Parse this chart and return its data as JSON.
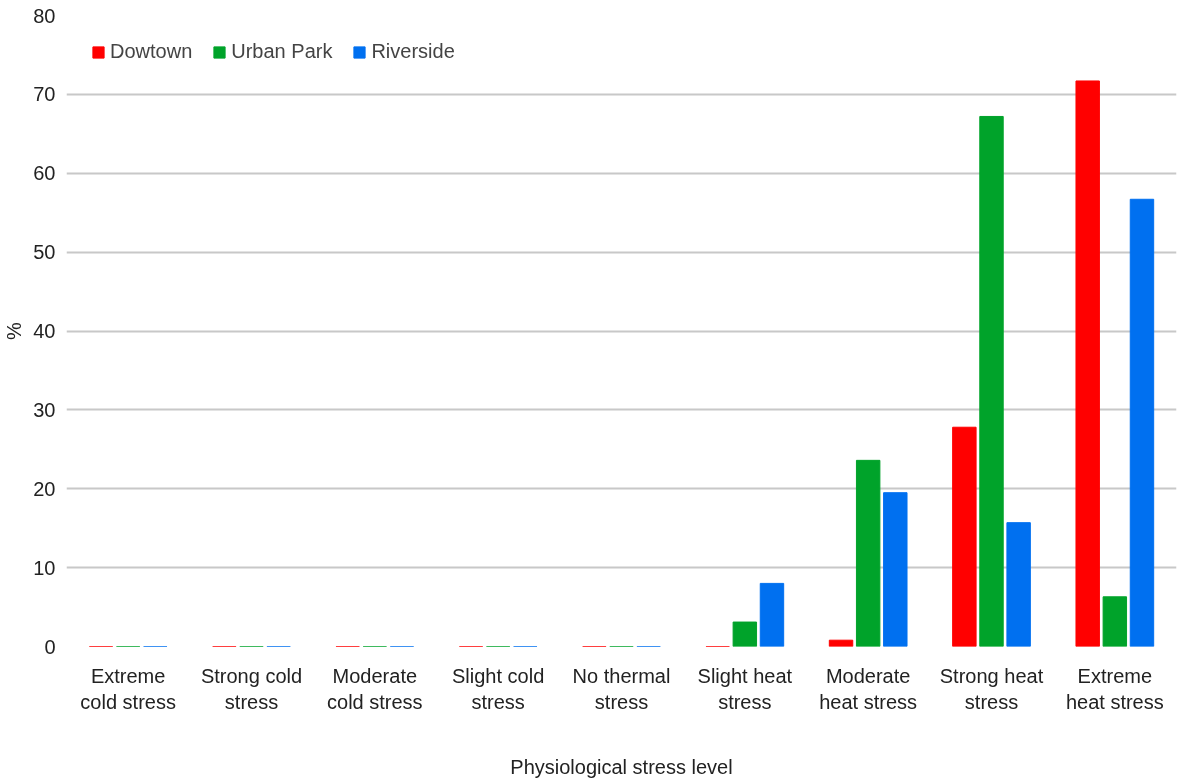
{
  "chart_data": {
    "type": "bar",
    "xlabel": "Physiological stress level",
    "ylabel": "%",
    "categories": [
      "Extreme\ncold stress",
      "Strong cold\nstress",
      "Moderate\ncold stress",
      "Slight cold\nstress",
      "No thermal\nstress",
      "Slight heat\nstress",
      "Moderate\nheat stress",
      "Strong heat\nstress",
      "Extreme\nheat stress"
    ],
    "series": [
      {
        "name": "Dowtown",
        "color": "#ff0000",
        "values": [
          0,
          0,
          0,
          0,
          0,
          0,
          0.8,
          27.8,
          71.7
        ]
      },
      {
        "name": "Urban Park",
        "color": "#00a32a",
        "values": [
          0,
          0,
          0,
          0,
          0,
          3.1,
          23.6,
          67.2,
          6.3
        ]
      },
      {
        "name": "Riverside",
        "color": "#0070f0",
        "values": [
          0,
          0,
          0,
          0,
          0,
          8.0,
          19.5,
          15.7,
          56.7
        ]
      }
    ],
    "ylim": [
      0,
      80
    ],
    "yticks": [
      0,
      10,
      20,
      30,
      40,
      50,
      60,
      70,
      80
    ],
    "grid": "y",
    "legend": "top left"
  }
}
